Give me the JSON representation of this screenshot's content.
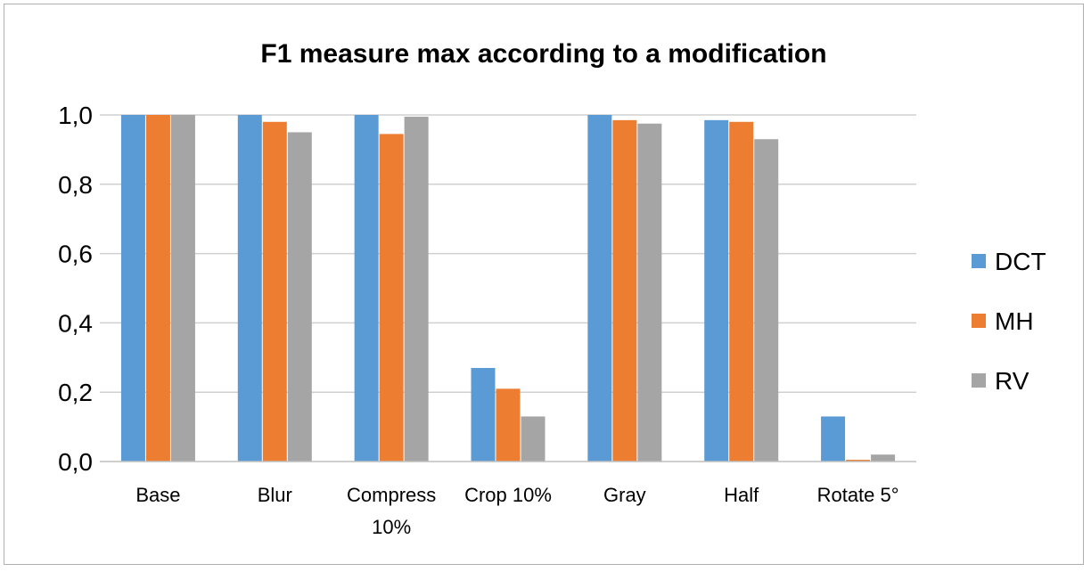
{
  "chart_data": {
    "type": "bar",
    "title": "F1 measure max according to a modification",
    "categories": [
      "Base",
      "Blur",
      "Compress 10%",
      "Crop 10%",
      "Gray",
      "Half",
      "Rotate 5°"
    ],
    "series": [
      {
        "name": "DCT",
        "color": "#5B9BD5",
        "values": [
          1.0,
          1.0,
          1.0,
          0.27,
          1.0,
          0.985,
          0.13
        ]
      },
      {
        "name": "MH",
        "color": "#ED7D31",
        "values": [
          1.0,
          0.98,
          0.945,
          0.21,
          0.985,
          0.98,
          0.005
        ]
      },
      {
        "name": "RV",
        "color": "#A5A5A5",
        "values": [
          1.0,
          0.95,
          0.995,
          0.13,
          0.975,
          0.93,
          0.02
        ]
      }
    ],
    "ylim": [
      0,
      1.0
    ],
    "yticks": [
      "0,0",
      "0,2",
      "0,4",
      "0,6",
      "0,8",
      "1,0"
    ],
    "grid": true,
    "legend": "right"
  }
}
